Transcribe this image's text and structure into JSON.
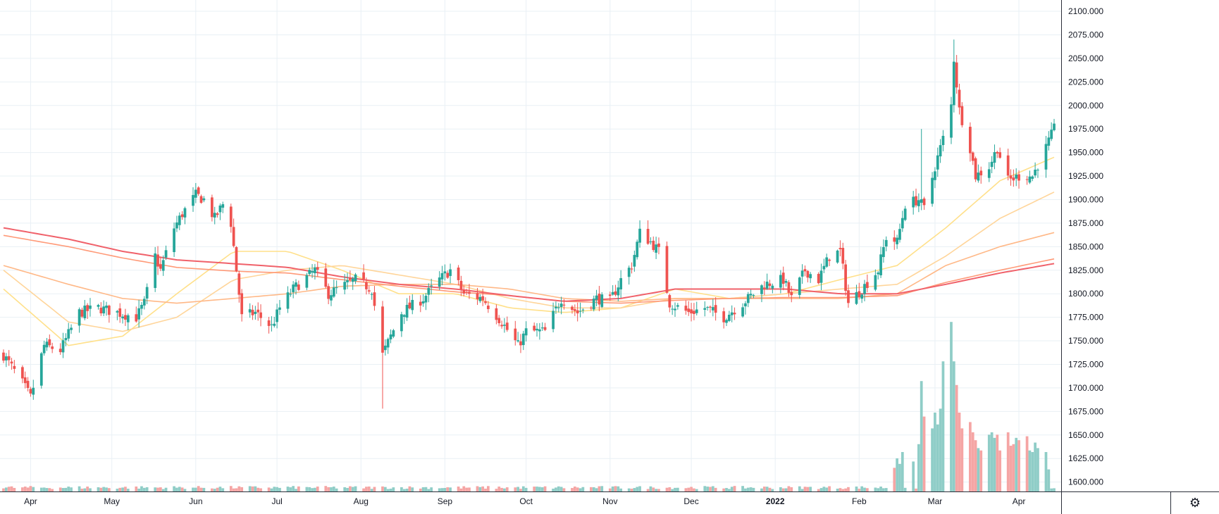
{
  "chart_data": {
    "type": "candlestick",
    "y_ticks": [
      "1600.000",
      "1625.000",
      "1650.000",
      "1675.000",
      "1700.000",
      "1725.000",
      "1750.000",
      "1775.000",
      "1800.000",
      "1825.000",
      "1850.000",
      "1875.000",
      "1900.000",
      "1925.000",
      "1950.000",
      "1975.000",
      "2000.000",
      "2025.000",
      "2050.000",
      "2075.000",
      "2100.000"
    ],
    "ylim": [
      1590,
      2112
    ],
    "x_ticks": [
      {
        "label": "Apr",
        "date": "2021-04-01",
        "major": false
      },
      {
        "label": "May",
        "date": "2021-05-01",
        "major": false
      },
      {
        "label": "Jun",
        "date": "2021-06-01",
        "major": false
      },
      {
        "label": "Jul",
        "date": "2021-07-01",
        "major": false
      },
      {
        "label": "Aug",
        "date": "2021-08-01",
        "major": false
      },
      {
        "label": "Sep",
        "date": "2021-09-01",
        "major": false
      },
      {
        "label": "Oct",
        "date": "2021-10-01",
        "major": false
      },
      {
        "label": "Nov",
        "date": "2021-11-01",
        "major": false
      },
      {
        "label": "Dec",
        "date": "2021-12-01",
        "major": false
      },
      {
        "label": "2022",
        "date": "2022-01-01",
        "major": true
      },
      {
        "label": "Feb",
        "date": "2022-02-01",
        "major": false
      },
      {
        "label": "Mar",
        "date": "2022-03-01",
        "major": false
      },
      {
        "label": "Apr",
        "date": "2022-04-01",
        "major": false
      }
    ],
    "date_range": [
      "2021-03-22",
      "2022-04-14"
    ],
    "price_anchors": [
      [
        "2021-03-22",
        1735
      ],
      [
        "2021-03-29",
        1705
      ],
      [
        "2021-04-01",
        1690
      ],
      [
        "2021-04-06",
        1745
      ],
      [
        "2021-04-12",
        1740
      ],
      [
        "2021-04-19",
        1780
      ],
      [
        "2021-04-26",
        1785
      ],
      [
        "2021-05-03",
        1780
      ],
      [
        "2021-05-10",
        1775
      ],
      [
        "2021-05-13",
        1790
      ],
      [
        "2021-05-17",
        1840
      ],
      [
        "2021-05-19",
        1825
      ],
      [
        "2021-05-24",
        1870
      ],
      [
        "2021-05-27",
        1885
      ],
      [
        "2021-06-01",
        1905
      ],
      [
        "2021-06-04",
        1900
      ],
      [
        "2021-06-08",
        1880
      ],
      [
        "2021-06-11",
        1895
      ],
      [
        "2021-06-14",
        1875
      ],
      [
        "2021-06-18",
        1775
      ],
      [
        "2021-06-23",
        1780
      ],
      [
        "2021-06-29",
        1765
      ],
      [
        "2021-07-02",
        1785
      ],
      [
        "2021-07-07",
        1805
      ],
      [
        "2021-07-15",
        1825
      ],
      [
        "2021-07-20",
        1800
      ],
      [
        "2021-07-30",
        1815
      ],
      [
        "2021-08-05",
        1805
      ],
      [
        "2021-08-09",
        1735
      ],
      [
        "2021-08-12",
        1755
      ],
      [
        "2021-08-16",
        1780
      ],
      [
        "2021-08-24",
        1795
      ],
      [
        "2021-08-30",
        1815
      ],
      [
        "2021-09-03",
        1825
      ],
      [
        "2021-09-08",
        1800
      ],
      [
        "2021-09-15",
        1795
      ],
      [
        "2021-09-22",
        1770
      ],
      [
        "2021-09-28",
        1745
      ],
      [
        "2021-10-01",
        1760
      ],
      [
        "2021-10-08",
        1760
      ],
      [
        "2021-10-14",
        1795
      ],
      [
        "2021-10-20",
        1780
      ],
      [
        "2021-10-27",
        1795
      ],
      [
        "2021-11-01",
        1792
      ],
      [
        "2021-11-05",
        1815
      ],
      [
        "2021-11-09",
        1830
      ],
      [
        "2021-11-12",
        1865
      ],
      [
        "2021-11-16",
        1855
      ],
      [
        "2021-11-19",
        1845
      ],
      [
        "2021-11-23",
        1790
      ],
      [
        "2021-11-30",
        1780
      ],
      [
        "2021-12-06",
        1785
      ],
      [
        "2021-12-13",
        1775
      ],
      [
        "2021-12-20",
        1790
      ],
      [
        "2021-12-28",
        1810
      ],
      [
        "2022-01-04",
        1815
      ],
      [
        "2022-01-07",
        1795
      ],
      [
        "2022-01-12",
        1825
      ],
      [
        "2022-01-17",
        1815
      ],
      [
        "2022-01-21",
        1840
      ],
      [
        "2022-01-25",
        1845
      ],
      [
        "2022-01-28",
        1790
      ],
      [
        "2022-02-02",
        1805
      ],
      [
        "2022-02-08",
        1825
      ],
      [
        "2022-02-11",
        1860
      ],
      [
        "2022-02-15",
        1855
      ],
      [
        "2022-02-18",
        1895
      ],
      [
        "2022-02-23",
        1900
      ],
      [
        "2022-02-25",
        1890
      ],
      [
        "2022-03-01",
        1935
      ],
      [
        "2022-03-04",
        1965
      ],
      [
        "2022-03-07",
        2000
      ],
      [
        "2022-03-08",
        2050
      ],
      [
        "2022-03-10",
        1995
      ],
      [
        "2022-03-14",
        1955
      ],
      [
        "2022-03-16",
        1925
      ],
      [
        "2022-03-21",
        1935
      ],
      [
        "2022-03-24",
        1955
      ],
      [
        "2022-03-28",
        1920
      ],
      [
        "2022-04-01",
        1925
      ],
      [
        "2022-04-06",
        1925
      ],
      [
        "2022-04-11",
        1955
      ],
      [
        "2022-04-14",
        1975
      ]
    ],
    "wick_extremes": [
      {
        "date": "2021-08-09",
        "low": 1678
      },
      {
        "date": "2022-02-24",
        "high": 1975
      },
      {
        "date": "2022-03-08",
        "high": 2070
      },
      {
        "date": "2021-11-15",
        "high": 1878
      }
    ],
    "moving_averages": [
      {
        "color": "#ffe08a",
        "anchors": [
          [
            "2021-03-22",
            1805
          ],
          [
            "2021-04-15",
            1745
          ],
          [
            "2021-05-05",
            1755
          ],
          [
            "2021-05-25",
            1800
          ],
          [
            "2021-06-15",
            1845
          ],
          [
            "2021-07-05",
            1845
          ],
          [
            "2021-07-25",
            1825
          ],
          [
            "2021-08-15",
            1800
          ],
          [
            "2021-09-05",
            1800
          ],
          [
            "2021-09-25",
            1785
          ],
          [
            "2021-10-15",
            1780
          ],
          [
            "2021-11-05",
            1785
          ],
          [
            "2021-11-25",
            1805
          ],
          [
            "2021-12-15",
            1795
          ],
          [
            "2022-01-05",
            1800
          ],
          [
            "2022-01-25",
            1815
          ],
          [
            "2022-02-15",
            1830
          ],
          [
            "2022-03-05",
            1870
          ],
          [
            "2022-03-25",
            1920
          ],
          [
            "2022-04-14",
            1945
          ]
        ]
      },
      {
        "color": "#ffd59a",
        "anchors": [
          [
            "2021-03-22",
            1825
          ],
          [
            "2021-04-15",
            1770
          ],
          [
            "2021-05-05",
            1760
          ],
          [
            "2021-05-25",
            1775
          ],
          [
            "2021-06-15",
            1815
          ],
          [
            "2021-07-05",
            1825
          ],
          [
            "2021-07-25",
            1830
          ],
          [
            "2021-08-15",
            1820
          ],
          [
            "2021-09-05",
            1810
          ],
          [
            "2021-09-25",
            1795
          ],
          [
            "2021-10-15",
            1785
          ],
          [
            "2021-11-05",
            1785
          ],
          [
            "2021-11-25",
            1795
          ],
          [
            "2021-12-15",
            1795
          ],
          [
            "2022-01-05",
            1800
          ],
          [
            "2022-01-25",
            1805
          ],
          [
            "2022-02-15",
            1810
          ],
          [
            "2022-03-05",
            1840
          ],
          [
            "2022-03-25",
            1880
          ],
          [
            "2022-04-14",
            1908
          ]
        ]
      },
      {
        "color": "#ffb887",
        "anchors": [
          [
            "2021-03-22",
            1830
          ],
          [
            "2021-04-15",
            1810
          ],
          [
            "2021-05-05",
            1795
          ],
          [
            "2021-05-25",
            1790
          ],
          [
            "2021-06-15",
            1795
          ],
          [
            "2021-07-05",
            1800
          ],
          [
            "2021-07-25",
            1808
          ],
          [
            "2021-08-15",
            1810
          ],
          [
            "2021-09-05",
            1810
          ],
          [
            "2021-09-25",
            1805
          ],
          [
            "2021-10-15",
            1795
          ],
          [
            "2021-11-05",
            1792
          ],
          [
            "2021-11-25",
            1795
          ],
          [
            "2021-12-15",
            1795
          ],
          [
            "2022-01-05",
            1795
          ],
          [
            "2022-01-25",
            1795
          ],
          [
            "2022-02-15",
            1800
          ],
          [
            "2022-03-05",
            1830
          ],
          [
            "2022-03-25",
            1850
          ],
          [
            "2022-04-14",
            1865
          ]
        ]
      },
      {
        "color": "#ff9a78",
        "anchors": [
          [
            "2021-03-22",
            1862
          ],
          [
            "2021-04-15",
            1850
          ],
          [
            "2021-05-05",
            1838
          ],
          [
            "2021-05-25",
            1828
          ],
          [
            "2021-06-15",
            1824
          ],
          [
            "2021-07-05",
            1822
          ],
          [
            "2021-07-25",
            1815
          ],
          [
            "2021-08-15",
            1808
          ],
          [
            "2021-09-05",
            1802
          ],
          [
            "2021-09-25",
            1798
          ],
          [
            "2021-10-15",
            1792
          ],
          [
            "2021-11-05",
            1790
          ],
          [
            "2021-11-25",
            1793
          ],
          [
            "2021-12-15",
            1795
          ],
          [
            "2022-01-05",
            1796
          ],
          [
            "2022-01-25",
            1796
          ],
          [
            "2022-02-15",
            1798
          ],
          [
            "2022-03-05",
            1812
          ],
          [
            "2022-03-25",
            1825
          ],
          [
            "2022-04-14",
            1837
          ]
        ]
      },
      {
        "color": "#f0616a",
        "anchors": [
          [
            "2021-03-22",
            1870
          ],
          [
            "2021-04-15",
            1858
          ],
          [
            "2021-05-05",
            1845
          ],
          [
            "2021-05-25",
            1836
          ],
          [
            "2021-06-15",
            1832
          ],
          [
            "2021-07-05",
            1828
          ],
          [
            "2021-07-25",
            1818
          ],
          [
            "2021-08-15",
            1810
          ],
          [
            "2021-09-05",
            1805
          ],
          [
            "2021-09-25",
            1798
          ],
          [
            "2021-10-15",
            1792
          ],
          [
            "2021-11-05",
            1795
          ],
          [
            "2021-11-25",
            1805
          ],
          [
            "2021-12-15",
            1805
          ],
          [
            "2022-01-05",
            1805
          ],
          [
            "2022-01-25",
            1800
          ],
          [
            "2022-02-15",
            1800
          ],
          [
            "2022-03-05",
            1810
          ],
          [
            "2022-03-25",
            1822
          ],
          [
            "2022-04-14",
            1832
          ]
        ]
      }
    ],
    "volume": {
      "baseline": 3,
      "spikes": [
        {
          "date": "2022-02-14",
          "value": 30
        },
        {
          "date": "2022-02-15",
          "value": 42
        },
        {
          "date": "2022-02-16",
          "value": 35
        },
        {
          "date": "2022-02-17",
          "value": 50
        },
        {
          "date": "2022-02-21",
          "value": 38
        },
        {
          "date": "2022-02-23",
          "value": 60
        },
        {
          "date": "2022-02-24",
          "value": 140
        },
        {
          "date": "2022-02-25",
          "value": 95
        },
        {
          "date": "2022-02-28",
          "value": 80
        },
        {
          "date": "2022-03-01",
          "value": 100
        },
        {
          "date": "2022-03-02",
          "value": 85
        },
        {
          "date": "2022-03-03",
          "value": 105
        },
        {
          "date": "2022-03-04",
          "value": 165
        },
        {
          "date": "2022-03-07",
          "value": 215
        },
        {
          "date": "2022-03-08",
          "value": 165
        },
        {
          "date": "2022-03-09",
          "value": 135
        },
        {
          "date": "2022-03-10",
          "value": 100
        },
        {
          "date": "2022-03-11",
          "value": 80
        },
        {
          "date": "2022-03-14",
          "value": 88
        },
        {
          "date": "2022-03-15",
          "value": 75
        },
        {
          "date": "2022-03-16",
          "value": 65
        },
        {
          "date": "2022-03-17",
          "value": 55
        },
        {
          "date": "2022-03-18",
          "value": 52
        },
        {
          "date": "2022-03-21",
          "value": 72
        },
        {
          "date": "2022-03-22",
          "value": 75
        },
        {
          "date": "2022-03-23",
          "value": 68
        },
        {
          "date": "2022-03-24",
          "value": 72
        },
        {
          "date": "2022-03-25",
          "value": 52
        },
        {
          "date": "2022-03-28",
          "value": 75
        },
        {
          "date": "2022-03-29",
          "value": 58
        },
        {
          "date": "2022-03-30",
          "value": 60
        },
        {
          "date": "2022-03-31",
          "value": 68
        },
        {
          "date": "2022-04-01",
          "value": 65
        },
        {
          "date": "2022-04-04",
          "value": 70
        },
        {
          "date": "2022-04-05",
          "value": 52
        },
        {
          "date": "2022-04-06",
          "value": 50
        },
        {
          "date": "2022-04-07",
          "value": 62
        },
        {
          "date": "2022-04-08",
          "value": 55
        },
        {
          "date": "2022-04-11",
          "value": 50
        },
        {
          "date": "2022-04-12",
          "value": 28
        }
      ]
    },
    "colors": {
      "up": "#26a69a",
      "down": "#ef5350",
      "volume_up": "#8fcdc7",
      "volume_down": "#f5a5a4",
      "grid": "#e9f0f5",
      "axis_border": "#2a2e39",
      "text": "#131722"
    }
  },
  "ui": {
    "settings_icon": "gear-icon"
  }
}
